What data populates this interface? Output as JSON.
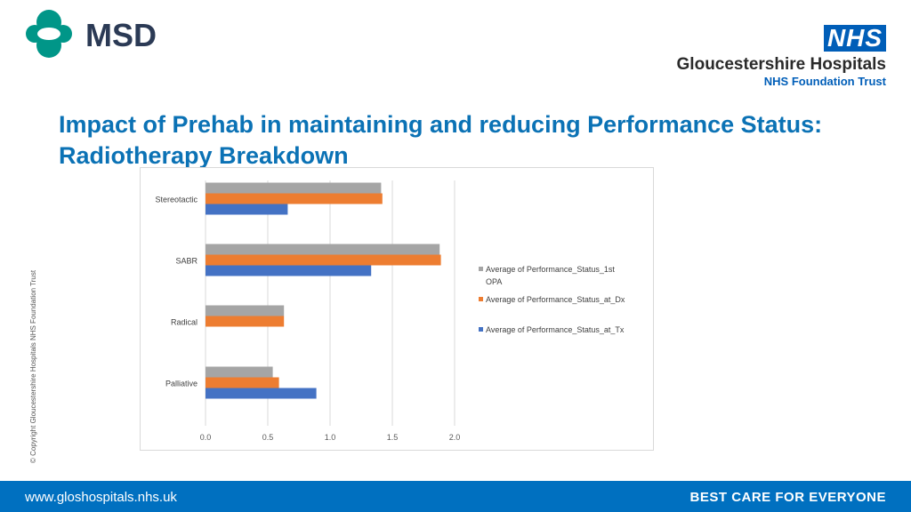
{
  "branding": {
    "msd_name": "MSD",
    "nhs_badge": "NHS",
    "nhs_org": "Gloucestershire Hospitals",
    "nhs_trust": "NHS Foundation Trust",
    "colors": {
      "msd_teal": "#009688",
      "msd_navy": "#2b3a55",
      "nhs_blue": "#005eb8",
      "title_blue": "#0b72b5"
    }
  },
  "title": {
    "line1": "Impact of Prehab in maintaining and reducing Performance Status:",
    "line2": "Radiotherapy Breakdown"
  },
  "copyright": "© Copyright Gloucestershire Hospitals NHS Foundation Trust",
  "footer": {
    "url": "www.gloshospitals.nhs.uk",
    "tagline": "BEST CARE FOR EVERYONE"
  },
  "chart_data": {
    "type": "bar",
    "orientation": "horizontal",
    "categories": [
      "Stereotactic",
      "SABR",
      "Radical",
      "Palliative"
    ],
    "series": [
      {
        "name": "Average of Performance_Status_1st OPA",
        "legend_lines": [
          "Average of Performance_Status_1st",
          "OPA"
        ],
        "color": "#a5a5a5",
        "values": [
          1.41,
          1.88,
          0.63,
          0.54
        ]
      },
      {
        "name": "Average of Performance_Status_at_Dx",
        "legend_lines": [
          "Average of Performance_Status_at_Dx"
        ],
        "color": "#ed7d31",
        "values": [
          1.42,
          1.89,
          0.63,
          0.59
        ]
      },
      {
        "name": "Average of Performance_Status_at_Tx",
        "legend_lines": [
          "Average of Performance_Status_at_Tx"
        ],
        "color": "#4472c4",
        "values": [
          0.66,
          1.33,
          null,
          0.89
        ]
      }
    ],
    "x_ticks": [
      "0.0",
      "0.5",
      "1.0",
      "1.5",
      "2.0"
    ],
    "xlim": [
      0,
      2.0
    ],
    "grid": true,
    "legend": "right",
    "title": "",
    "xlabel": "",
    "ylabel": ""
  }
}
